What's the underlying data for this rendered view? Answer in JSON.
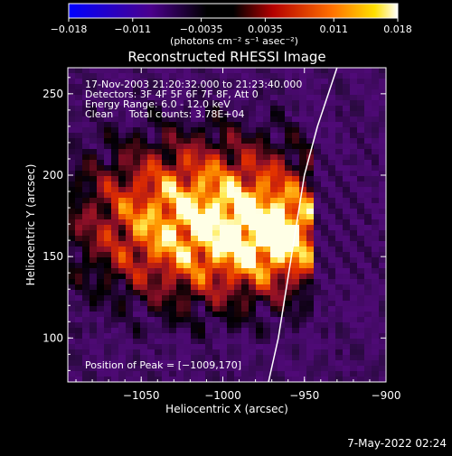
{
  "chart_data": {
    "type": "heatmap",
    "title": "Reconstructed RHESSI Image",
    "xlabel": "Heliocentric X (arcsec)",
    "ylabel": "Heliocentric Y (arcsec)",
    "xlim": [
      -1095,
      -900
    ],
    "ylim": [
      73,
      266
    ],
    "xticks": [
      -1050,
      -1000,
      -950,
      -900
    ],
    "yticks": [
      100,
      150,
      200,
      250
    ],
    "xtick_labels": [
      "−1050",
      "−1000",
      "−950",
      "−900"
    ],
    "ytick_labels": [
      "100",
      "150",
      "200",
      "250"
    ],
    "colorbar": {
      "range": [
        -0.018,
        0.018
      ],
      "ticks": [
        -0.018,
        -0.011,
        -0.0035,
        0.0035,
        0.011,
        0.018
      ],
      "tick_labels": [
        "−0.018",
        "−0.011",
        "−0.0035",
        "0.0035",
        "0.011",
        "0.018"
      ],
      "unit_label": "(photons cm⁻² s⁻¹ asec⁻²)"
    },
    "annotations": [
      "17-Nov-2003 21:20:32.000 to 21:23:40.000",
      "Detectors: 3F 4F 5F 6F 7F 8F, Att 0",
      "Energy Range: 6.0 - 12.0 keV",
      "Clean     Total counts: 3.78E+04"
    ],
    "peak_label": "Position of Peak = [−1009,170]",
    "peak": [
      -1009,
      170
    ],
    "limb_curve": [
      [
        -972,
        73
      ],
      [
        -966,
        100
      ],
      [
        -958,
        150
      ],
      [
        -950,
        200
      ],
      [
        -942,
        230
      ],
      [
        -930,
        266
      ]
    ],
    "source_center": [
      -1010,
      172
    ],
    "colors": [
      "#0000ff",
      "#000000",
      "#5a0a8c",
      "#b4143c",
      "#ff7800",
      "#ffff96",
      "#ffffff"
    ]
  },
  "timestamp": "7-May-2022 02:24"
}
